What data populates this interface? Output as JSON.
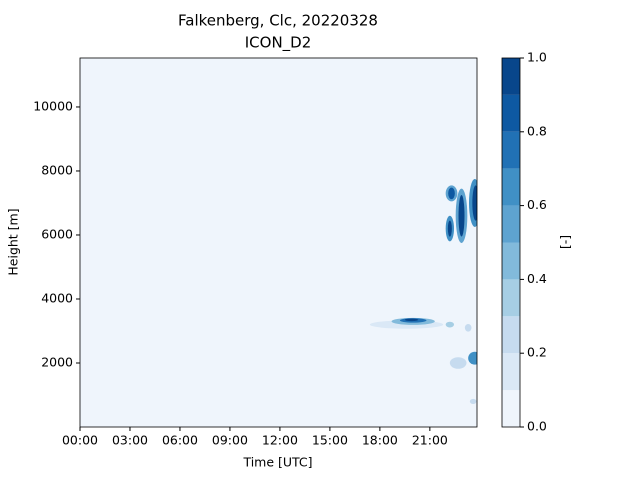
{
  "chart_data": {
    "type": "contourf",
    "title": "Falkenberg, Clc, 20220328",
    "subtitle": "ICON_D2",
    "x_label": "Time [UTC]",
    "y_label": "Height [m]",
    "colorbar_label": "[-]",
    "xlim": [
      0,
      23.83
    ],
    "ylim": [
      0,
      11530
    ],
    "xticks": [
      {
        "value": 0,
        "label": "00:00"
      },
      {
        "value": 3,
        "label": "03:00"
      },
      {
        "value": 6,
        "label": "06:00"
      },
      {
        "value": 9,
        "label": "09:00"
      },
      {
        "value": 12,
        "label": "12:00"
      },
      {
        "value": 15,
        "label": "15:00"
      },
      {
        "value": 18,
        "label": "18:00"
      },
      {
        "value": 21,
        "label": "21:00"
      }
    ],
    "yticks": [
      2000,
      4000,
      6000,
      8000,
      10000
    ],
    "levels": [
      0,
      0.1,
      0.2,
      0.3,
      0.4,
      0.5,
      0.6,
      0.7,
      0.8,
      0.9,
      1.0
    ],
    "colors": [
      "#eff5fc",
      "#dae8f6",
      "#c6dbef",
      "#a6cee4",
      "#82badb",
      "#5ea3d0",
      "#4090c5",
      "#2171b5",
      "#0e59a2",
      "#08468b"
    ],
    "cticks": [
      {
        "value": 0,
        "label": "0.0"
      },
      {
        "value": 0.2,
        "label": "0.2"
      },
      {
        "value": 0.4,
        "label": "0.4"
      },
      {
        "value": 0.6,
        "label": "0.6"
      },
      {
        "value": 0.8,
        "label": "0.8"
      },
      {
        "value": 1.0,
        "label": "1.0"
      }
    ],
    "cells": [
      {
        "x": 19.6,
        "y": 3200,
        "rx": 2.2,
        "ry": 130,
        "value": 0.15
      },
      {
        "x": 20.0,
        "y": 3300,
        "rx": 1.3,
        "ry": 110,
        "value": 0.45
      },
      {
        "x": 20.0,
        "y": 3330,
        "rx": 0.8,
        "ry": 70,
        "value": 0.75
      },
      {
        "x": 19.9,
        "y": 3350,
        "rx": 0.4,
        "ry": 40,
        "value": 0.9
      },
      {
        "x": 22.2,
        "y": 3200,
        "rx": 0.25,
        "ry": 90,
        "value": 0.3
      },
      {
        "x": 23.3,
        "y": 3100,
        "rx": 0.2,
        "ry": 120,
        "value": 0.2
      },
      {
        "x": 22.7,
        "y": 2000,
        "rx": 0.5,
        "ry": 180,
        "value": 0.25
      },
      {
        "x": 23.7,
        "y": 2150,
        "rx": 0.4,
        "ry": 200,
        "value": 0.6
      },
      {
        "x": 23.6,
        "y": 800,
        "rx": 0.2,
        "ry": 80,
        "value": 0.2
      },
      {
        "x": 22.3,
        "y": 7300,
        "rx": 0.35,
        "ry": 250,
        "value": 0.5
      },
      {
        "x": 22.3,
        "y": 7300,
        "rx": 0.2,
        "ry": 180,
        "value": 0.85
      },
      {
        "x": 22.2,
        "y": 6200,
        "rx": 0.25,
        "ry": 400,
        "value": 0.6
      },
      {
        "x": 22.2,
        "y": 6200,
        "rx": 0.12,
        "ry": 250,
        "value": 0.9
      },
      {
        "x": 22.9,
        "y": 6600,
        "rx": 0.35,
        "ry": 850,
        "value": 0.55
      },
      {
        "x": 22.9,
        "y": 6600,
        "rx": 0.18,
        "ry": 650,
        "value": 0.95
      },
      {
        "x": 23.7,
        "y": 7000,
        "rx": 0.35,
        "ry": 750,
        "value": 0.6
      },
      {
        "x": 23.75,
        "y": 7000,
        "rx": 0.2,
        "ry": 550,
        "value": 0.95
      }
    ]
  }
}
